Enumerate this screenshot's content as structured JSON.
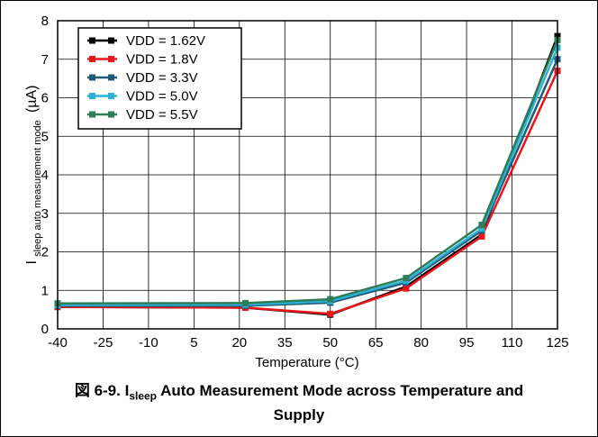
{
  "chart_data": {
    "type": "line",
    "xlabel": "Temperature (°C)",
    "ylabel_main": "I",
    "ylabel_sub": "sleep auto measurement mode",
    "ylabel_unit": "(µA)",
    "x_ticks": [
      "-40",
      "-25",
      "-10",
      "5",
      "20",
      "35",
      "50",
      "65",
      "80",
      "95",
      "110",
      "125"
    ],
    "x_tick_values": [
      -40,
      -25,
      -10,
      5,
      20,
      35,
      50,
      65,
      80,
      95,
      110,
      125
    ],
    "y_ticks": [
      "0",
      "1",
      "2",
      "3",
      "4",
      "5",
      "6",
      "7",
      "8"
    ],
    "xlim": [
      -40,
      125
    ],
    "ylim": [
      0,
      8
    ],
    "grid": true,
    "legend_position": "top-left",
    "series": [
      {
        "name": "VDD = 1.62V",
        "color": "#000000",
        "x": [
          -40,
          22,
          50,
          75,
          100,
          125
        ],
        "y": [
          0.57,
          0.55,
          0.37,
          1.1,
          2.45,
          7.6
        ]
      },
      {
        "name": "VDD = 1.8V",
        "color": "#e8161b",
        "x": [
          -40,
          22,
          50,
          75,
          100,
          125
        ],
        "y": [
          0.57,
          0.55,
          0.39,
          1.05,
          2.4,
          6.7
        ]
      },
      {
        "name": "VDD = 3.3V",
        "color": "#1f5a78",
        "x": [
          -40,
          22,
          50,
          75,
          100,
          125
        ],
        "y": [
          0.6,
          0.6,
          0.68,
          1.2,
          2.55,
          7.0
        ]
      },
      {
        "name": "VDD = 5.0V",
        "color": "#2ab3d6",
        "x": [
          -40,
          22,
          50,
          75,
          100,
          125
        ],
        "y": [
          0.62,
          0.63,
          0.72,
          1.25,
          2.6,
          7.3
        ]
      },
      {
        "name": "VDD = 5.5V",
        "color": "#2e7d56",
        "x": [
          -40,
          22,
          50,
          75,
          100,
          125
        ],
        "y": [
          0.66,
          0.67,
          0.77,
          1.32,
          2.7,
          7.5
        ]
      }
    ]
  },
  "caption": {
    "prefix": "図 6-9. I",
    "sub": "sleep",
    "rest_line1": " Auto Measurement Mode across Temperature and",
    "line2": "Supply"
  }
}
